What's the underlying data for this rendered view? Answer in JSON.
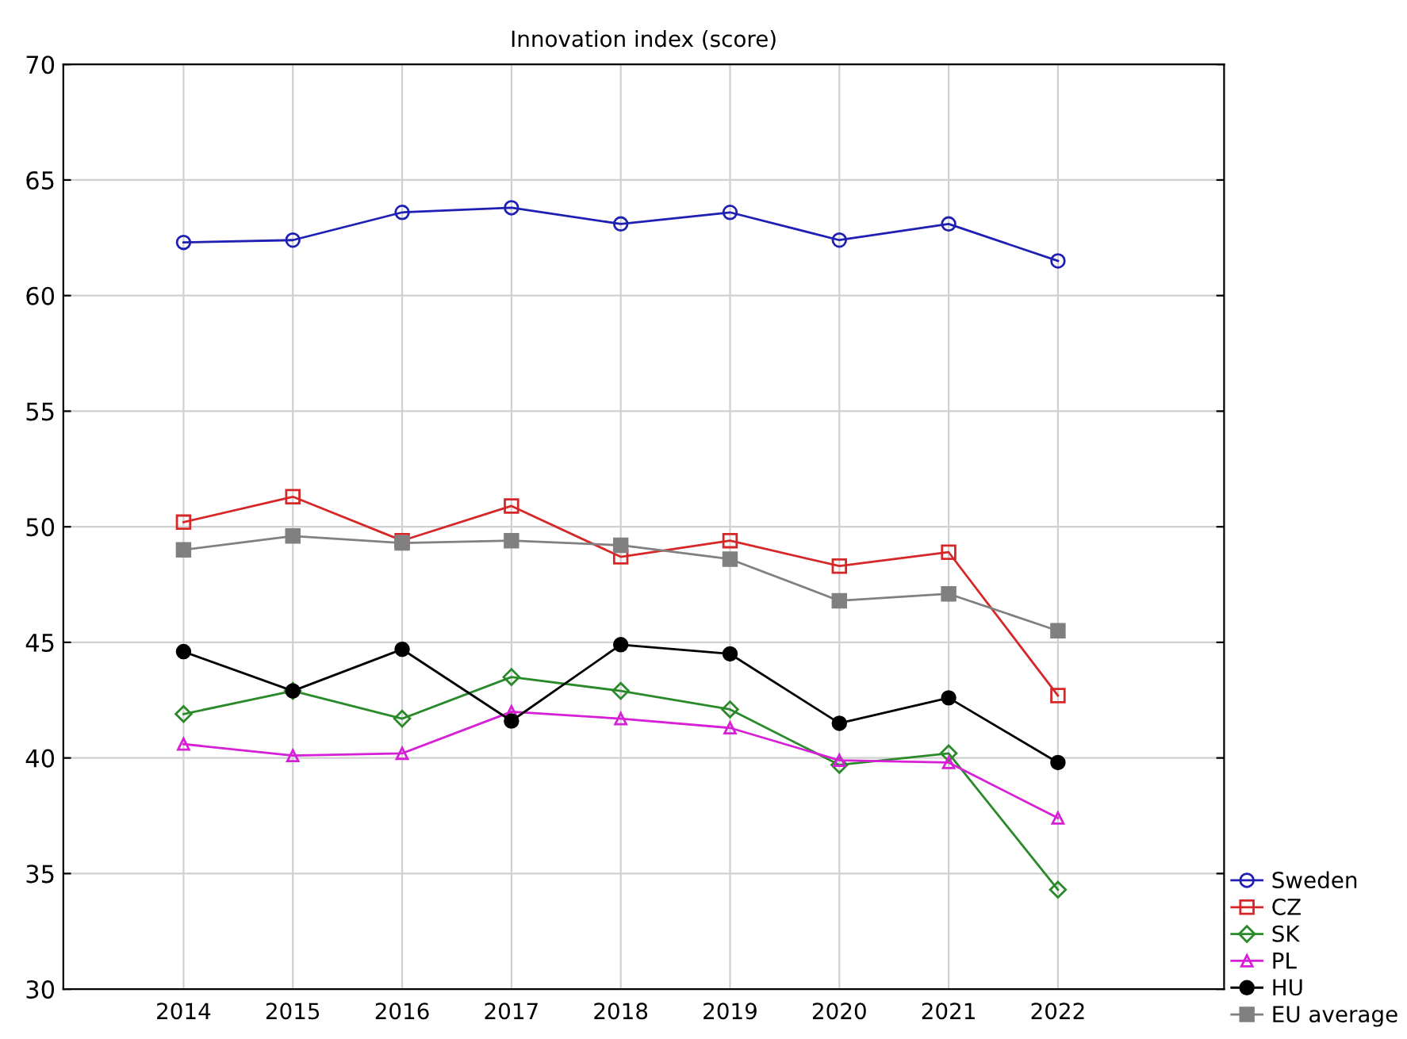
{
  "chart_data": {
    "type": "line",
    "title": "Innovation index (score)",
    "categories": [
      "2014",
      "2015",
      "2016",
      "2017",
      "2018",
      "2019",
      "2020",
      "2021",
      "2022"
    ],
    "series": [
      {
        "name": "Sweden",
        "color": "#1f1fb4",
        "marker": "circle",
        "values": [
          62.3,
          62.4,
          63.6,
          63.8,
          63.1,
          63.6,
          62.4,
          63.1,
          61.5
        ]
      },
      {
        "name": "CZ",
        "color": "#d62728",
        "marker": "square",
        "values": [
          50.2,
          51.3,
          49.4,
          50.9,
          48.7,
          49.4,
          48.3,
          48.9,
          42.7
        ]
      },
      {
        "name": "SK",
        "color": "#2a8a2a",
        "marker": "diamond",
        "values": [
          41.9,
          42.9,
          41.7,
          43.5,
          42.9,
          42.1,
          39.7,
          40.2,
          34.3
        ]
      },
      {
        "name": "PL",
        "color": "#d61fd6",
        "marker": "triangle",
        "values": [
          40.6,
          40.1,
          40.2,
          42.0,
          41.7,
          41.3,
          39.9,
          39.8,
          37.4
        ]
      },
      {
        "name": "HU",
        "color": "#000000",
        "marker": "circle",
        "values": [
          44.6,
          42.9,
          44.7,
          41.6,
          44.9,
          44.5,
          41.5,
          42.6,
          39.8
        ]
      },
      {
        "name": "EU average",
        "color": "#808080",
        "marker": "square",
        "values": [
          49.0,
          49.6,
          49.3,
          49.4,
          49.2,
          48.6,
          46.8,
          47.1,
          45.5
        ]
      }
    ],
    "ylim": [
      30,
      70
    ],
    "yticks": [
      30,
      35,
      40,
      45,
      50,
      55,
      60,
      65,
      70
    ],
    "grid": true,
    "legend": "bottom right"
  }
}
